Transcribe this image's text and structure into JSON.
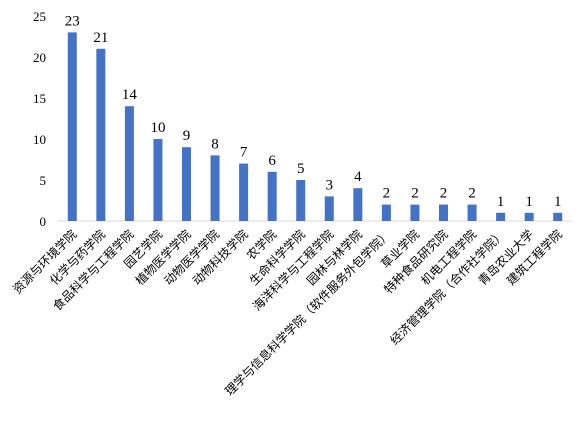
{
  "chart_data": {
    "type": "bar",
    "categories": [
      "资源与环境学院",
      "化学与药学院",
      "食品科学与工程学院",
      "园艺学院",
      "植物医学学院",
      "动物医学学院",
      "动物科技学院",
      "农学院",
      "生命科学学院",
      "海洋科学与工程学院",
      "园林与林学院",
      "理学与信息科学学院（软件服务外包学院）",
      "草业学院",
      "特种食品研究院",
      "机电工程学院",
      "经济管理学院（合作社学院）",
      "青岛农业大学",
      "建筑工程学院"
    ],
    "values": [
      23,
      21,
      14,
      10,
      9,
      8,
      7,
      6,
      5,
      3,
      4,
      2,
      2,
      2,
      2,
      1,
      1,
      1
    ],
    "color": "#4472c4",
    "ylim": [
      0,
      25
    ],
    "yticks": [
      0,
      5,
      10,
      15,
      20,
      25
    ],
    "grid": false
  }
}
